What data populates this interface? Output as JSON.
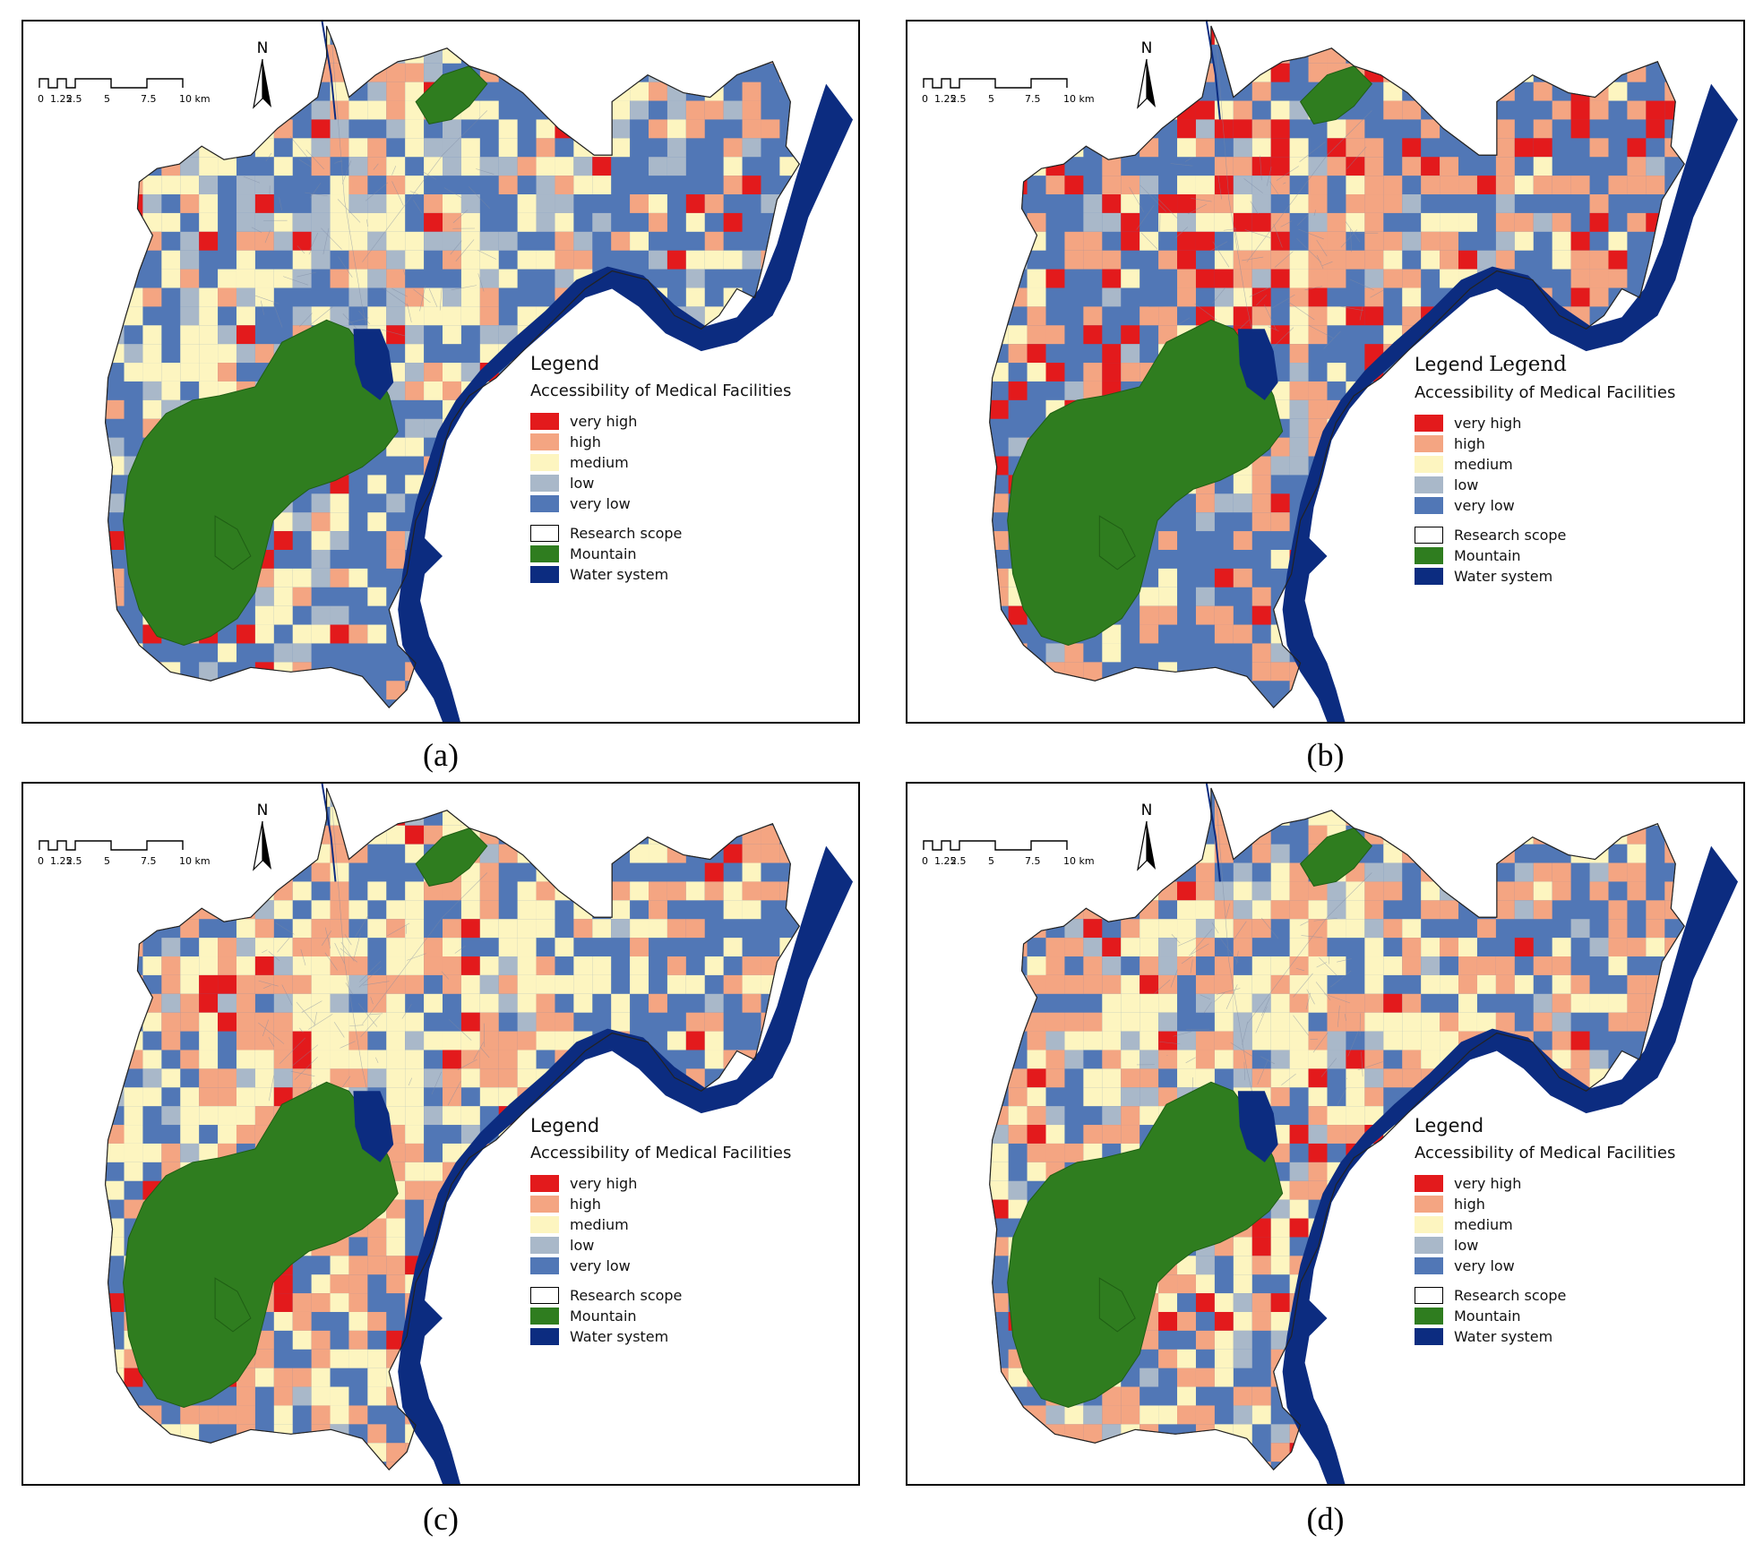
{
  "colors": {
    "very_high": "#e31a1c",
    "high": "#f4a582",
    "medium": "#fdf5c0",
    "low": "#a9b8c9",
    "very_low": "#5177b6",
    "mountain": "#2f7d1f",
    "water": "#0c2c80",
    "research": "#ffffff"
  },
  "panels": [
    {
      "caption": "(a)",
      "legend_title": "Legend",
      "legend_extra": "",
      "legend_subtitle": "Accessibility of Medical Facilities",
      "mix": {
        "very_high": 0.03,
        "high": 0.16,
        "medium": 0.3,
        "low": 0.16,
        "very_low": 0.35
      }
    },
    {
      "caption": "(b)",
      "legend_title": "Legend",
      "legend_extra": "Legend",
      "legend_subtitle": "Accessibility of Medical Facilities",
      "mix": {
        "very_high": 0.1,
        "high": 0.3,
        "medium": 0.13,
        "low": 0.05,
        "very_low": 0.42
      }
    },
    {
      "caption": "(c)",
      "legend_title": "Legend",
      "legend_extra": "",
      "legend_subtitle": "Accessibility of Medical Facilities",
      "mix": {
        "very_high": 0.04,
        "high": 0.3,
        "medium": 0.36,
        "low": 0.06,
        "very_low": 0.24
      }
    },
    {
      "caption": "(d)",
      "legend_title": "Legend",
      "legend_extra": "",
      "legend_subtitle": "Accessibility of Medical Facilities",
      "mix": {
        "very_high": 0.05,
        "high": 0.32,
        "medium": 0.3,
        "low": 0.08,
        "very_low": 0.25
      }
    }
  ],
  "legend_items": [
    {
      "key": "very_high",
      "label": "very high"
    },
    {
      "key": "high",
      "label": "high"
    },
    {
      "key": "medium",
      "label": "medium"
    },
    {
      "key": "low",
      "label": "low"
    },
    {
      "key": "very_low",
      "label": "very low"
    }
  ],
  "legend_extras": [
    {
      "key": "research",
      "label": "Research scope"
    },
    {
      "key": "mountain",
      "label": "Mountain"
    },
    {
      "key": "water",
      "label": "Water system"
    }
  ],
  "scale_labels": [
    "0",
    "1.25",
    "2.5",
    "5",
    "7.5",
    "10 km"
  ],
  "north_label": "N"
}
